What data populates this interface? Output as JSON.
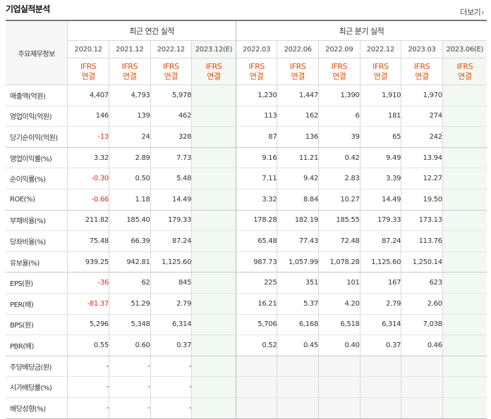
{
  "section_title": "기업실적분석",
  "more_label": "더보기",
  "more_chevron": "›",
  "row_header_label": "주요재무정보",
  "annual_group_label": "최근 연간 실적",
  "quarter_group_label": "최근 분기 실적",
  "annual_periods": [
    "2020.12",
    "2021.12",
    "2022.12",
    "2023.12(E)"
  ],
  "quarter_periods": [
    "2022.03",
    "2022.06",
    "2022.09",
    "2022.12",
    "2023.03",
    "2023.06(E)"
  ],
  "standard_line1": "IFRS",
  "standard_line2": "연결",
  "rows": [
    {
      "label": "매출액(억원)",
      "values": [
        "4,407",
        "4,793",
        "5,978",
        "",
        "1,230",
        "1,447",
        "1,390",
        "1,910",
        "1,970",
        ""
      ]
    },
    {
      "label": "영업이익(억원)",
      "values": [
        "146",
        "139",
        "462",
        "",
        "113",
        "162",
        "6",
        "181",
        "274",
        ""
      ]
    },
    {
      "label": "당기순이익(억원)",
      "values": [
        "-13",
        "24",
        "328",
        "",
        "87",
        "136",
        "39",
        "65",
        "242",
        ""
      ]
    },
    {
      "label": "영업이익률(%)",
      "values": [
        "3.32",
        "2.89",
        "7.73",
        "",
        "9.16",
        "11.21",
        "0.42",
        "9.49",
        "13.94",
        ""
      ]
    },
    {
      "label": "순이익률(%)",
      "values": [
        "-0.30",
        "0.50",
        "5.48",
        "",
        "7.11",
        "9.42",
        "2.83",
        "3.39",
        "12.27",
        ""
      ]
    },
    {
      "label": "ROE(%)",
      "values": [
        "-0.66",
        "1.18",
        "14.49",
        "",
        "3.32",
        "8.84",
        "10.27",
        "14.49",
        "19.50",
        ""
      ]
    },
    {
      "label": "부채비율(%)",
      "values": [
        "211.82",
        "185.40",
        "179.33",
        "",
        "178.28",
        "182.19",
        "185.55",
        "179.33",
        "173.13",
        ""
      ]
    },
    {
      "label": "당좌비율(%)",
      "values": [
        "75.48",
        "66.39",
        "87.24",
        "",
        "65.48",
        "77.43",
        "72.48",
        "87.24",
        "113.76",
        ""
      ]
    },
    {
      "label": "유보율(%)",
      "values": [
        "939.25",
        "942.81",
        "1,125.60",
        "",
        "987.73",
        "1,057.99",
        "1,078.28",
        "1,125.60",
        "1,250.14",
        ""
      ]
    },
    {
      "label": "EPS(원)",
      "values": [
        "-36",
        "62",
        "845",
        "",
        "225",
        "351",
        "101",
        "167",
        "623",
        ""
      ]
    },
    {
      "label": "PER(배)",
      "values": [
        "-81.37",
        "51.29",
        "2.79",
        "",
        "16.21",
        "5.37",
        "4.20",
        "2.79",
        "2.60",
        ""
      ]
    },
    {
      "label": "BPS(원)",
      "values": [
        "5,296",
        "5,348",
        "6,314",
        "",
        "5,706",
        "6,168",
        "6,518",
        "6,314",
        "7,038",
        ""
      ]
    },
    {
      "label": "PBR(배)",
      "values": [
        "0.55",
        "0.60",
        "0.37",
        "",
        "0.52",
        "0.45",
        "0.40",
        "0.37",
        "0.46",
        ""
      ]
    },
    {
      "label": "주당배당금(원)",
      "values": [
        "-",
        "-",
        "-",
        "",
        "",
        "",
        "",
        "",
        "",
        ""
      ]
    },
    {
      "label": "시가배당률(%)",
      "values": [
        "-",
        "-",
        "-",
        "",
        "",
        "",
        "",
        "",
        "",
        ""
      ]
    },
    {
      "label": "배당성향(%)",
      "values": [
        "-",
        "-",
        "-",
        "",
        "",
        "",
        "",
        "",
        "",
        ""
      ]
    }
  ],
  "colors": {
    "negative": "#e22a1f",
    "standard_text": "#e0500c",
    "estimate_bg": "#f2f8f2"
  }
}
